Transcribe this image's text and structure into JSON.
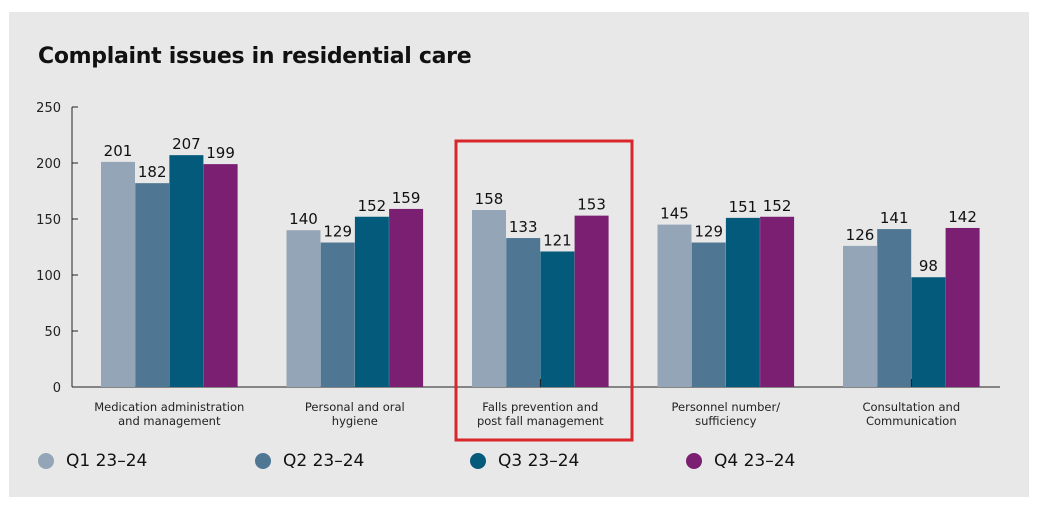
{
  "chart_data": {
    "type": "bar",
    "title": "Complaint issues in residential care",
    "xlabel": "",
    "ylabel": "",
    "ylim": [
      0,
      250
    ],
    "yticks": [
      0,
      50,
      100,
      150,
      200,
      250
    ],
    "categories": [
      [
        "Medication administration",
        "and management"
      ],
      [
        "Personal and oral",
        "hygiene"
      ],
      [
        "Falls prevention and",
        "post fall management"
      ],
      [
        "Personnel number/",
        "sufficiency"
      ],
      [
        "Consultation and",
        "Communication"
      ]
    ],
    "series": [
      {
        "name": "Q1 23–24",
        "color": "#93a5b7",
        "values": [
          201,
          140,
          158,
          145,
          126
        ]
      },
      {
        "name": "Q2 23–24",
        "color": "#4f7793",
        "values": [
          182,
          129,
          133,
          129,
          141
        ]
      },
      {
        "name": "Q3 23–24",
        "color": "#045a7a",
        "values": [
          207,
          152,
          121,
          151,
          98
        ]
      },
      {
        "name": "Q4 23–24",
        "color": "#7a1f72",
        "values": [
          199,
          159,
          153,
          152,
          142
        ]
      }
    ],
    "highlight": {
      "category_index": 2,
      "color": "#d9262c"
    },
    "legend_position": "bottom"
  }
}
